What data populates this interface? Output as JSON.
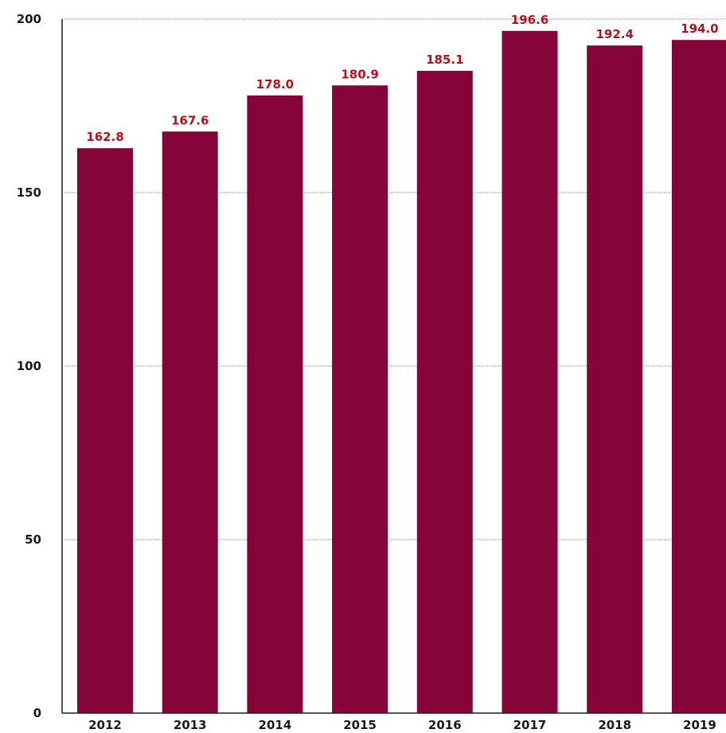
{
  "chart_data": {
    "type": "bar",
    "categories": [
      "2012",
      "2013",
      "2014",
      "2015",
      "2016",
      "2017",
      "2018",
      "2019"
    ],
    "values": [
      162.8,
      167.6,
      178.0,
      180.9,
      185.1,
      196.6,
      192.4,
      194.0
    ],
    "value_labels": [
      "162.8",
      "167.6",
      "178.0",
      "180.9",
      "185.1",
      "196.6",
      "192.4",
      "194.0"
    ],
    "ylim": [
      0,
      200
    ],
    "yticks": [
      0,
      50,
      100,
      150,
      200
    ],
    "grid": true,
    "legend": "none",
    "colors": {
      "bar": "#850538",
      "data_label": "#b5121b",
      "text": "#1a1a1a",
      "grid": "#8a8a8a"
    }
  }
}
